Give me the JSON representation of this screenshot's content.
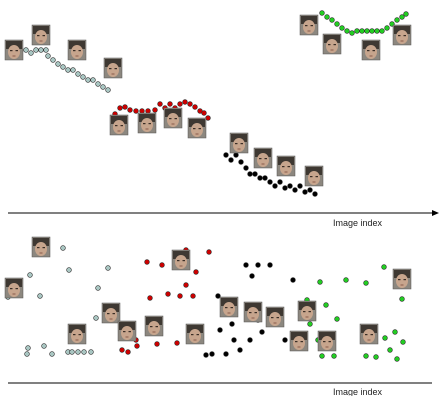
{
  "figure": {
    "top_axis_label": "Image index",
    "bottom_axis_label": "Image index"
  },
  "colors": {
    "cluster_1": "#a9c6c2",
    "cluster_2": "#cc0000",
    "cluster_3": "#000000",
    "cluster_4": "#22cc22",
    "point_outline": "#333333",
    "axis": "#000000",
    "face_thumbnail": "#9a948c"
  },
  "icons": {
    "face_thumbnail": "face-thumbnail-icon"
  }
}
